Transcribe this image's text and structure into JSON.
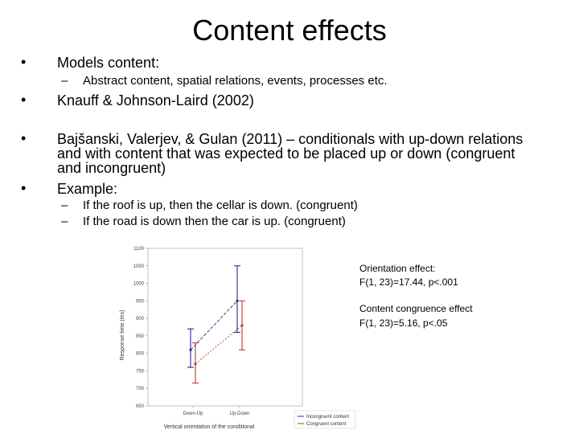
{
  "slide": {
    "title": "Content effects",
    "bullet_char": "•",
    "dash_char": "–",
    "bullets": [
      {
        "text": "Models content:"
      },
      {
        "text": "Knauff & Johnson-Laird (2002)"
      },
      {
        "text": "Bajšanski, Valerjev, & Gulan (2011) – conditionals with up-down relations"
      },
      {
        "text": "Example:"
      }
    ],
    "bullet3_line2": "and with content that was expected to be placed up or down (congruent",
    "bullet3_line3": "and incongruent)",
    "sub1": "Abstract content, spatial relations, events, processes etc.",
    "examples": [
      "If the roof is up, then the cellar is down. (congruent)",
      "If the road is down then the car is up. (congruent)"
    ]
  },
  "annotations": {
    "orientation_title": "Orientation effect:",
    "orientation_stat": "F(1, 23)=17.44, p<.001",
    "congruence_title": "Content congruence effect",
    "congruence_stat": "F(1, 23)=5.16, p<.05"
  },
  "chart_data": {
    "type": "line",
    "ylabel": "Response time (ms)",
    "xlabel": "Vertical orientation of the conditional",
    "categories": [
      "Down-Up",
      "Up-Down"
    ],
    "yticks": [
      "650",
      "700",
      "750",
      "800",
      "850",
      "900",
      "950",
      "1000",
      "1050",
      "1100"
    ],
    "ylim": [
      650,
      1100
    ],
    "series": [
      {
        "name": "Incongruent content",
        "color": "#2b2b8c",
        "values": [
          810,
          950
        ],
        "err_low": [
          760,
          860
        ],
        "err_high": [
          870,
          1050
        ]
      },
      {
        "name": "Congruent content",
        "color": "#c0392b",
        "values": [
          770,
          880
        ],
        "err_low": [
          715,
          810
        ],
        "err_high": [
          830,
          950
        ]
      }
    ]
  }
}
